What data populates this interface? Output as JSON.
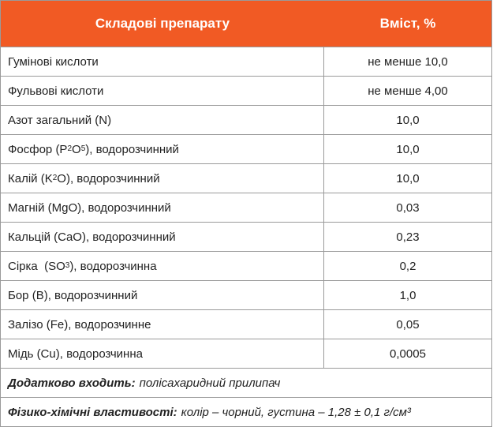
{
  "table": {
    "header": {
      "name": "Складові препарату",
      "value": "Вміст, %"
    },
    "rows": [
      {
        "label": "Гумінові кислоти",
        "value": "не менше 10,0"
      },
      {
        "label": "Фульвові кислоти",
        "value": "не менше 4,00"
      },
      {
        "label": "Азот загальний (N)",
        "value": "10,0"
      },
      {
        "label_pre": "Фосфор (P",
        "sub1": "2",
        "label_mid": "O",
        "sub2": "5",
        "label_post": "), водорозчинний",
        "value": "10,0"
      },
      {
        "label_pre": "Калій (K",
        "sub1": "2",
        "label_post": "O), водорозчинний",
        "value": "10,0"
      },
      {
        "label": "Магній (MgO), водорозчинний",
        "value": "0,03"
      },
      {
        "label": "Кальцій (CaO), водорозчинний",
        "value": "0,23"
      },
      {
        "label_pre": "Сірка  (SO",
        "sub1": "3",
        "label_post": "), водорозчинна",
        "value": "0,2"
      },
      {
        "label": "Бор (B), водорозчинний",
        "value": "1,0"
      },
      {
        "label": "Залізо (Fe), водорозчинне",
        "value": "0,05"
      },
      {
        "label": "Мідь (Cu), водорозчинна",
        "value": "0,0005"
      }
    ],
    "notes": [
      {
        "label": "Додатково входить:",
        "text": "полісахаридний прилипач"
      },
      {
        "label": "Фізико-хімічні властивості:",
        "text": "колір – чорний, густина – 1,28 ± 0,1 г/см³"
      }
    ]
  }
}
